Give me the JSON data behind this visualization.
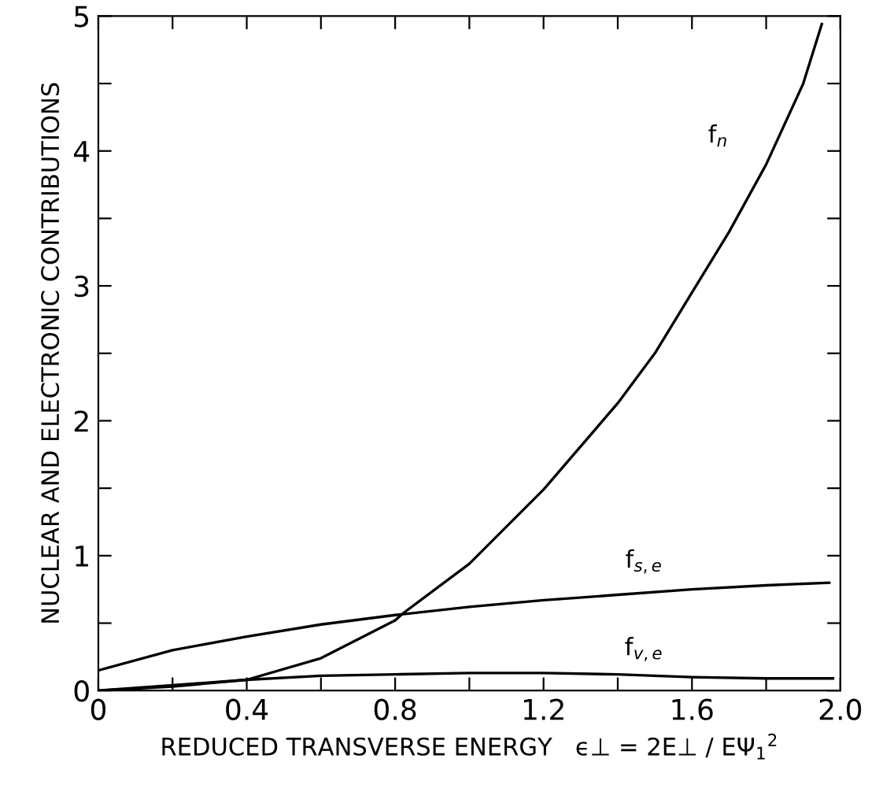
{
  "chart_data": {
    "type": "line",
    "xlabel": "REDUCED TRANSVERSE ENERGY   ϵ⊥ = 2E⊥ / EΨ$_{1}$$^{2}$",
    "ylabel": "NUCLEAR AND ELECTRONIC CONTRIBUTIONS",
    "xlim": [
      0,
      2.0
    ],
    "ylim": [
      0,
      5
    ],
    "xticks": [
      0,
      {
        "value": 0.2,
        "label": null
      },
      0.4,
      {
        "value": 0.6,
        "label": null
      },
      0.8,
      {
        "value": 1.0,
        "label": null
      },
      1.2,
      {
        "value": 1.4,
        "label": null
      },
      1.6,
      {
        "value": 1.8,
        "label": null
      },
      {
        "value": 2.0,
        "label": "2.0"
      }
    ],
    "yticks": [
      0,
      {
        "value": 0.5,
        "label": null
      },
      1,
      {
        "value": 1.5,
        "label": null
      },
      2,
      {
        "value": 2.5,
        "label": null
      },
      3,
      {
        "value": 3.5,
        "label": null
      },
      4,
      {
        "value": 4.5,
        "label": null
      },
      5
    ],
    "grid": false,
    "legend": false,
    "marker": "none",
    "line_style": "solid",
    "series": [
      {
        "name": "f$_{n}$",
        "color": "#000000",
        "x": [
          0,
          0.2,
          0.4,
          0.6,
          0.8,
          0.82,
          1.0,
          1.2,
          1.4,
          1.5,
          1.6,
          1.7,
          1.8,
          1.9,
          1.95
        ],
        "values": [
          0,
          0.03,
          0.08,
          0.24,
          0.52,
          0.57,
          0.94,
          1.49,
          2.13,
          2.5,
          2.95,
          3.4,
          3.9,
          4.5,
          4.94
        ]
      },
      {
        "name": "f$_{s,e}$",
        "color": "#000000",
        "x": [
          0,
          0.2,
          0.4,
          0.6,
          0.8,
          1.0,
          1.2,
          1.4,
          1.6,
          1.8,
          1.97
        ],
        "values": [
          0.15,
          0.3,
          0.4,
          0.49,
          0.56,
          0.62,
          0.67,
          0.71,
          0.75,
          0.78,
          0.8
        ]
      },
      {
        "name": "f$_{v,e}$",
        "color": "#000000",
        "x": [
          0,
          0.2,
          0.4,
          0.6,
          0.8,
          1.0,
          1.2,
          1.4,
          1.6,
          1.8,
          1.98
        ],
        "values": [
          0,
          0.04,
          0.08,
          0.11,
          0.12,
          0.13,
          0.13,
          0.12,
          0.1,
          0.09,
          0.09
        ]
      }
    ]
  }
}
